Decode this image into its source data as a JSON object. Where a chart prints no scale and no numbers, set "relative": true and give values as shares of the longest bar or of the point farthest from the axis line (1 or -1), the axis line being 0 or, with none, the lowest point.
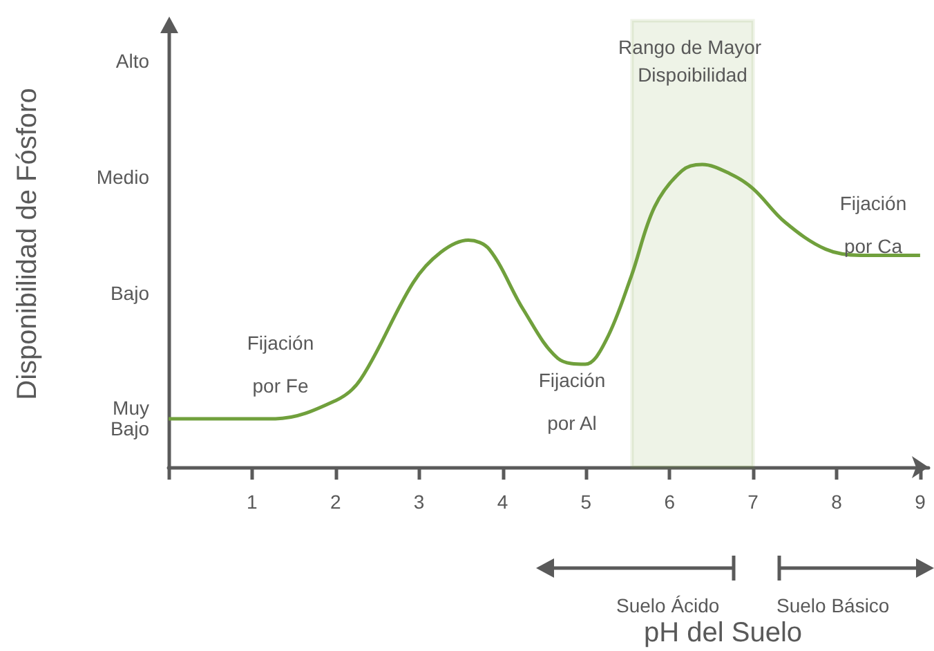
{
  "chart_data": {
    "type": "line",
    "xlabel": "pH del Suelo",
    "ylabel": "Disponibilidad de Fósforo",
    "relative": true,
    "x": [
      0,
      1.28,
      2,
      2.3,
      2.93,
      3.26,
      3.59,
      3.84,
      4.25,
      4.66,
      4.99,
      5.24,
      5.54,
      5.82,
      6.15,
      6.39,
      6.72,
      7,
      7.38,
      7.87,
      8.29,
      9
    ],
    "series": [
      {
        "color": "#70a03c",
        "values": [
          0.16,
          0.16,
          0.22,
          0.29,
          0.61,
          0.71,
          0.75,
          0.72,
          0.52,
          0.36,
          0.34,
          0.42,
          0.63,
          0.86,
          0.98,
          1,
          0.97,
          0.92,
          0.81,
          0.72,
          0.7,
          0.7
        ]
      }
    ],
    "xlim": [
      0,
      9.1
    ],
    "xticks": [
      {
        "value": 0,
        "label": null
      },
      1,
      2,
      3,
      4,
      5,
      6,
      7,
      8,
      9
    ],
    "bands": [
      {
        "axis": "x",
        "from": 5.55,
        "to": 7,
        "label": "Rango de Mayor Dispoibilidad",
        "color": "#70a03c"
      }
    ],
    "annotations": [
      "Muy Bajo",
      "Bajo",
      "Medio",
      "Alto",
      "Fijación por Fe",
      "Fijación por Al",
      "Fijación por Ca",
      "Suelo Ácido",
      "Suelo Básico"
    ],
    "marker": "none",
    "line_style": "solid"
  }
}
